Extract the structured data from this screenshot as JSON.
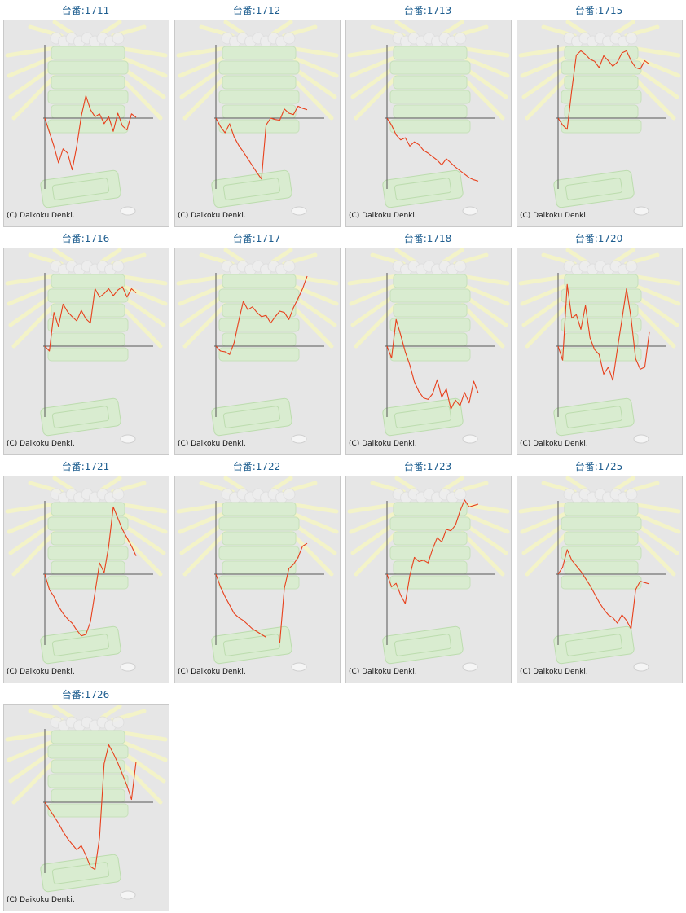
{
  "colors": {
    "title": "#1d5d8f",
    "line": "#e8401c",
    "axis": "#555555",
    "background": "#e6e6e6"
  },
  "charts": [
    {
      "title": "台番:1711",
      "copyright": "(C) Daikoku Denki.",
      "chart_data": {
        "type": "line",
        "ylim": [
          -100,
          100
        ],
        "x": [
          0,
          5,
          10,
          15,
          20,
          25,
          30,
          35,
          40,
          45,
          50,
          55,
          60,
          65,
          70,
          75,
          80,
          85,
          90,
          95,
          100
        ],
        "values": [
          0,
          -20,
          -40,
          -64,
          -44,
          -50,
          -74,
          -40,
          3,
          32,
          12,
          2,
          6,
          -8,
          2,
          -19,
          7,
          -11,
          -17,
          6,
          1
        ]
      }
    },
    {
      "title": "台番:1712",
      "copyright": "(C) Daikoku Denki.",
      "chart_data": {
        "type": "line",
        "ylim": [
          -100,
          100
        ],
        "x": [
          0,
          5,
          10,
          15,
          20,
          25,
          30,
          35,
          40,
          45,
          50,
          55,
          60,
          65,
          70,
          75,
          80,
          85,
          90,
          95,
          100
        ],
        "values": [
          0,
          -12,
          -21,
          -8,
          -27,
          -39,
          -48,
          -58,
          -68,
          -78,
          -87,
          -10,
          0,
          -2,
          -3,
          13,
          7,
          5,
          17,
          14,
          12
        ]
      }
    },
    {
      "title": "台番:1713",
      "copyright": "(C) Daikoku Denki.",
      "chart_data": {
        "type": "line",
        "ylim": [
          -100,
          100
        ],
        "x": [
          0,
          5,
          10,
          15,
          20,
          25,
          30,
          35,
          40,
          45,
          50,
          55,
          60,
          65,
          70,
          75,
          80,
          85,
          90,
          95,
          100
        ],
        "values": [
          0,
          -10,
          -24,
          -31,
          -28,
          -40,
          -34,
          -38,
          -46,
          -50,
          -55,
          -60,
          -67,
          -58,
          -64,
          -70,
          -75,
          -80,
          -85,
          -88,
          -90
        ]
      }
    },
    {
      "title": "台番:1715",
      "copyright": "(C) Daikoku Denki.",
      "chart_data": {
        "type": "line",
        "ylim": [
          -100,
          100
        ],
        "x": [
          0,
          5,
          10,
          15,
          20,
          25,
          30,
          35,
          40,
          45,
          50,
          55,
          60,
          65,
          70,
          75,
          80,
          85,
          90,
          95,
          100
        ],
        "values": [
          0,
          -10,
          -16,
          40,
          90,
          96,
          91,
          84,
          81,
          72,
          89,
          82,
          74,
          80,
          93,
          96,
          82,
          72,
          70,
          82,
          77
        ]
      }
    },
    {
      "title": "台番:1716",
      "copyright": "(C) Daikoku Denki.",
      "chart_data": {
        "type": "line",
        "ylim": [
          -100,
          100
        ],
        "x": [
          0,
          5,
          10,
          15,
          20,
          25,
          30,
          35,
          40,
          45,
          50,
          55,
          60,
          65,
          70,
          75,
          80,
          85,
          90,
          95,
          100
        ],
        "values": [
          0,
          -7,
          48,
          28,
          60,
          49,
          42,
          36,
          51,
          39,
          33,
          82,
          70,
          75,
          82,
          72,
          80,
          85,
          70,
          82,
          76
        ]
      }
    },
    {
      "title": "台番:1717",
      "copyright": "(C) Daikoku Denki.",
      "chart_data": {
        "type": "line",
        "ylim": [
          -100,
          100
        ],
        "x": [
          0,
          5,
          10,
          15,
          20,
          25,
          30,
          35,
          40,
          45,
          50,
          55,
          60,
          65,
          70,
          75,
          80,
          85,
          90,
          95,
          100
        ],
        "values": [
          0,
          -7,
          -8,
          -12,
          5,
          36,
          64,
          52,
          56,
          48,
          42,
          44,
          33,
          42,
          50,
          48,
          38,
          55,
          68,
          82,
          100
        ]
      }
    },
    {
      "title": "台番:1718",
      "copyright": "(C) Daikoku Denki.",
      "chart_data": {
        "type": "line",
        "ylim": [
          -100,
          100
        ],
        "x": [
          0,
          5,
          10,
          15,
          20,
          25,
          30,
          35,
          40,
          45,
          50,
          55,
          60,
          65,
          70,
          75,
          80,
          85,
          90,
          95,
          100
        ],
        "values": [
          0,
          -17,
          38,
          16,
          -8,
          -27,
          -51,
          -65,
          -74,
          -76,
          -68,
          -48,
          -73,
          -61,
          -90,
          -77,
          -85,
          -66,
          -81,
          -50,
          -67
        ]
      }
    },
    {
      "title": "台番:1720",
      "copyright": "(C) Daikoku Denki.",
      "chart_data": {
        "type": "line",
        "ylim": [
          -100,
          100
        ],
        "x": [
          0,
          5,
          10,
          15,
          20,
          25,
          30,
          35,
          40,
          45,
          50,
          55,
          60,
          65,
          70,
          75,
          80,
          85,
          90,
          95,
          100
        ],
        "values": [
          0,
          -20,
          88,
          40,
          45,
          24,
          58,
          12,
          -5,
          -12,
          -40,
          -30,
          -49,
          -4,
          38,
          82,
          40,
          -18,
          -33,
          -30,
          20
        ]
      }
    },
    {
      "title": "台番:1721",
      "copyright": "(C) Daikoku Denki.",
      "chart_data": {
        "type": "line",
        "ylim": [
          -100,
          100
        ],
        "x": [
          0,
          5,
          10,
          15,
          20,
          25,
          30,
          35,
          40,
          45,
          50,
          55,
          60,
          65,
          70,
          75,
          80,
          85,
          90,
          95,
          100
        ],
        "values": [
          0,
          -22,
          -32,
          -46,
          -56,
          -64,
          -70,
          -80,
          -88,
          -86,
          -68,
          -26,
          16,
          2,
          40,
          96,
          80,
          64,
          52,
          40,
          26
        ]
      }
    },
    {
      "title": "台番:1722",
      "copyright": "(C) Daikoku Denki.",
      "chart_data": {
        "type": "line",
        "ylim": [
          -100,
          100
        ],
        "x": [
          0,
          5,
          10,
          15,
          20,
          25,
          30,
          35,
          40,
          45,
          50,
          55,
          60,
          65,
          70,
          75,
          80,
          85,
          90,
          95,
          100
        ],
        "values": [
          0,
          -18,
          -32,
          -44,
          -56,
          -62,
          -66,
          -72,
          -78,
          -82,
          -86,
          -90,
          null,
          null,
          -98,
          -20,
          8,
          14,
          24,
          40,
          44
        ]
      }
    },
    {
      "title": "台番:1723",
      "copyright": "(C) Daikoku Denki.",
      "chart_data": {
        "type": "line",
        "ylim": [
          -100,
          100
        ],
        "x": [
          0,
          5,
          10,
          15,
          20,
          25,
          30,
          35,
          40,
          45,
          50,
          55,
          60,
          65,
          70,
          75,
          80,
          85,
          90,
          95,
          100
        ],
        "values": [
          0,
          -18,
          -13,
          -30,
          -42,
          -2,
          24,
          18,
          20,
          16,
          36,
          52,
          46,
          64,
          62,
          70,
          90,
          106,
          96,
          98,
          100
        ]
      }
    },
    {
      "title": "台番:1725",
      "copyright": "(C) Daikoku Denki.",
      "chart_data": {
        "type": "line",
        "ylim": [
          -100,
          100
        ],
        "x": [
          0,
          5,
          10,
          15,
          20,
          25,
          30,
          35,
          40,
          45,
          50,
          55,
          60,
          65,
          70,
          75,
          80,
          85,
          90,
          95,
          100
        ],
        "values": [
          0,
          10,
          35,
          20,
          12,
          4,
          -6,
          -16,
          -28,
          -40,
          -50,
          -58,
          -62,
          -70,
          -58,
          -66,
          -78,
          -22,
          -10,
          -12,
          -14
        ]
      }
    },
    {
      "title": "台番:1726",
      "copyright": "(C) Daikoku Denki.",
      "chart_data": {
        "type": "line",
        "ylim": [
          -100,
          100
        ],
        "x": [
          0,
          5,
          10,
          15,
          20,
          25,
          30,
          35,
          40,
          45,
          50,
          55,
          60,
          65,
          70,
          75,
          80,
          85,
          90,
          95,
          100
        ],
        "values": [
          0,
          -10,
          -20,
          -30,
          -42,
          -52,
          -60,
          -68,
          -62,
          -76,
          -92,
          -96,
          -50,
          55,
          82,
          70,
          56,
          40,
          24,
          4,
          58
        ]
      }
    }
  ]
}
